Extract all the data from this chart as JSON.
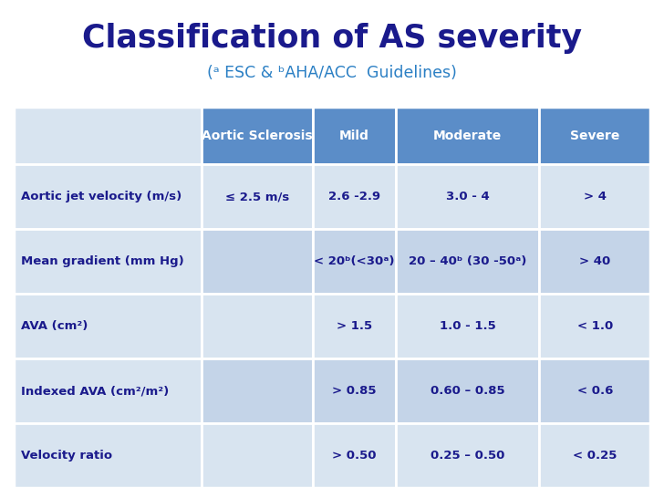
{
  "title": "Classification of AS severity",
  "subtitle": "(ᵃ ESC & ᵇAHA/ACC  Guidelines)",
  "title_color": "#1a1a8c",
  "subtitle_color": "#2a7fc4",
  "bg_color": "#ffffff",
  "header_bg": "#5b8dc8",
  "header_text_color": "#ffffff",
  "row_bg_light": "#d8e4f0",
  "row_bg_mid": "#c4d4e8",
  "label_col_bg": "#d8e4f0",
  "headers": [
    "",
    "Aortic Sclerosis",
    "Mild",
    "Moderate",
    "Severe"
  ],
  "col_props": [
    0.295,
    0.175,
    0.13,
    0.225,
    0.175
  ],
  "rows": [
    {
      "label": "Aortic jet velocity (m/s)",
      "values": [
        "≤ 2.5 m/s",
        "2.6 -2.9",
        "3.0 - 4",
        "> 4"
      ]
    },
    {
      "label": "Mean gradient (mm Hg)",
      "values": [
        "",
        "< 20ᵇ(<30ᵃ)",
        "20 – 40ᵇ (30 -50ᵃ)",
        "> 40"
      ]
    },
    {
      "label": "AVA (cm²)",
      "values": [
        "",
        "> 1.5",
        "1.0 - 1.5",
        "< 1.0"
      ]
    },
    {
      "label": "Indexed AVA (cm²/m²)",
      "values": [
        "",
        "> 0.85",
        "0.60 – 0.85",
        "< 0.6"
      ]
    },
    {
      "label": "Velocity ratio",
      "values": [
        "",
        "> 0.50",
        "0.25 – 0.50",
        "< 0.25"
      ]
    }
  ]
}
